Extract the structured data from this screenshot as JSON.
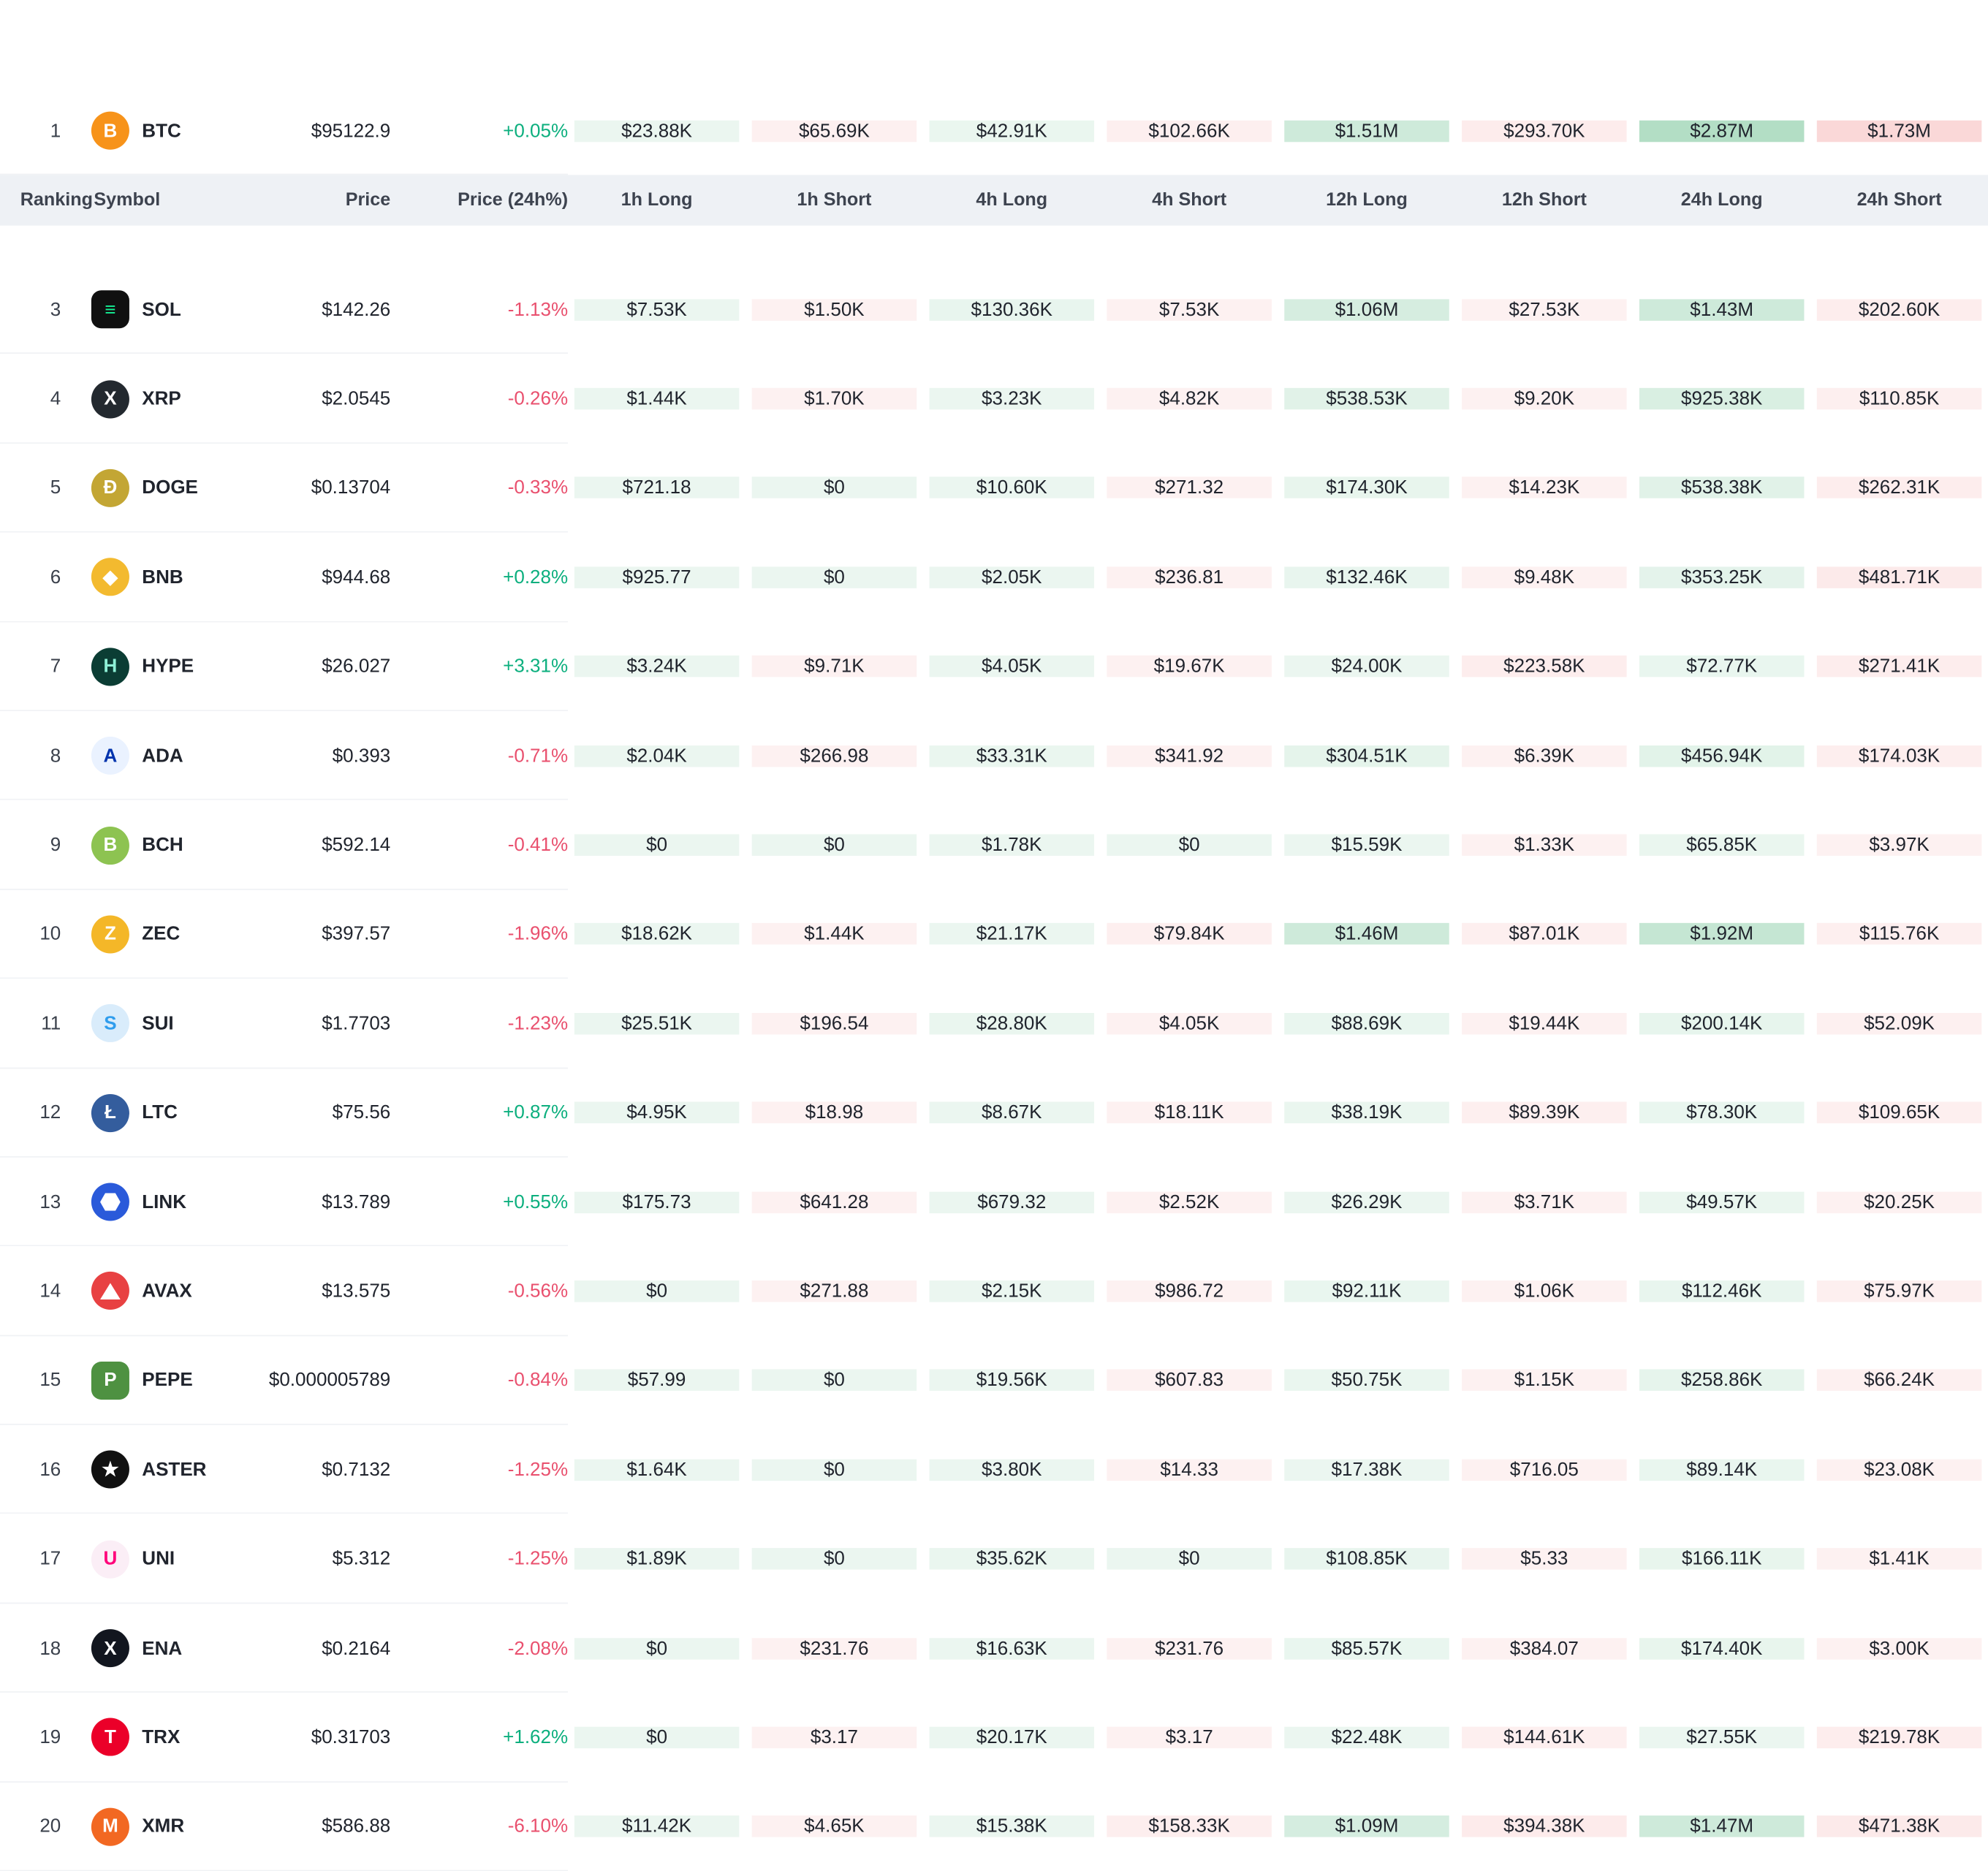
{
  "colors": {
    "positive": "#0caf7e",
    "negative": "#e9506e",
    "text": "#20242d",
    "rank_text": "#3a404b",
    "header_bg": "#eef1f5",
    "header_text": "#3d434f",
    "row_border": "#f0f2f5",
    "long_rgb": "34,160,88",
    "short_rgb": "236,95,95",
    "max_value_for_shade": 2900000
  },
  "header": {
    "columns": [
      "Ranking",
      "Symbol",
      "Price",
      "Price (24h%)",
      "1h Long",
      "1h Short",
      "4h Long",
      "4h Short",
      "12h Long",
      "12h Short",
      "24h Long",
      "24h Short"
    ]
  },
  "top_row": {
    "rank": "1",
    "symbol": "BTC",
    "price": "$95122.9",
    "change": "+0.05%",
    "icon": {
      "bg": "#f7931a",
      "fg": "#ffffff",
      "glyph": "B"
    },
    "cells": [
      "$23.88K",
      "$65.69K",
      "$42.91K",
      "$102.66K",
      "$1.51M",
      "$293.70K",
      "$2.87M",
      "$1.73M"
    ]
  },
  "obscured_row": {
    "cell_colors": [
      "rgba(34,160,88,0.10)",
      "rgba(236,95,95,0.10)",
      "rgba(34,160,88,0.10)",
      "rgba(236,95,95,0.10)",
      "rgba(34,160,88,0.22)",
      "rgba(236,95,95,0.10)",
      "rgba(34,160,88,0.28)",
      "rgba(236,95,95,0.45)"
    ]
  },
  "rows": [
    {
      "rank": "3",
      "symbol": "SOL",
      "price": "$142.26",
      "change": "-1.13%",
      "icon": {
        "bg": "#101010",
        "fg": "#14f195",
        "glyph": "≡",
        "shape": "rounded-square"
      },
      "cells": [
        "$7.53K",
        "$1.50K",
        "$130.36K",
        "$7.53K",
        "$1.06M",
        "$27.53K",
        "$1.43M",
        "$202.60K"
      ]
    },
    {
      "rank": "4",
      "symbol": "XRP",
      "price": "$2.0545",
      "change": "-0.26%",
      "icon": {
        "bg": "#23292f",
        "fg": "#ffffff",
        "glyph": "X"
      },
      "cells": [
        "$1.44K",
        "$1.70K",
        "$3.23K",
        "$4.82K",
        "$538.53K",
        "$9.20K",
        "$925.38K",
        "$110.85K"
      ]
    },
    {
      "rank": "5",
      "symbol": "DOGE",
      "price": "$0.13704",
      "change": "-0.33%",
      "icon": {
        "bg": "#c3a634",
        "fg": "#ffffff",
        "glyph": "Ð"
      },
      "cells": [
        "$721.18",
        "$0",
        "$10.60K",
        "$271.32",
        "$174.30K",
        "$14.23K",
        "$538.38K",
        "$262.31K"
      ]
    },
    {
      "rank": "6",
      "symbol": "BNB",
      "price": "$944.68",
      "change": "+0.28%",
      "icon": {
        "bg": "#f3ba2f",
        "fg": "#ffffff",
        "glyph": "◆"
      },
      "cells": [
        "$925.77",
        "$0",
        "$2.05K",
        "$236.81",
        "$132.46K",
        "$9.48K",
        "$353.25K",
        "$481.71K"
      ]
    },
    {
      "rank": "7",
      "symbol": "HYPE",
      "price": "$26.027",
      "change": "+3.31%",
      "icon": {
        "bg": "#0b3d34",
        "fg": "#8ef0d6",
        "glyph": "H"
      },
      "cells": [
        "$3.24K",
        "$9.71K",
        "$4.05K",
        "$19.67K",
        "$24.00K",
        "$223.58K",
        "$72.77K",
        "$271.41K"
      ]
    },
    {
      "rank": "8",
      "symbol": "ADA",
      "price": "$0.393",
      "change": "-0.71%",
      "icon": {
        "bg": "#eaf2ff",
        "fg": "#0033ad",
        "glyph": "A"
      },
      "cells": [
        "$2.04K",
        "$266.98",
        "$33.31K",
        "$341.92",
        "$304.51K",
        "$6.39K",
        "$456.94K",
        "$174.03K"
      ]
    },
    {
      "rank": "9",
      "symbol": "BCH",
      "price": "$592.14",
      "change": "-0.41%",
      "icon": {
        "bg": "#8dc351",
        "fg": "#ffffff",
        "glyph": "B"
      },
      "cells": [
        "$0",
        "$0",
        "$1.78K",
        "$0",
        "$15.59K",
        "$1.33K",
        "$65.85K",
        "$3.97K"
      ]
    },
    {
      "rank": "10",
      "symbol": "ZEC",
      "price": "$397.57",
      "change": "-1.96%",
      "icon": {
        "bg": "#f4b728",
        "fg": "#ffffff",
        "glyph": "Z"
      },
      "cells": [
        "$18.62K",
        "$1.44K",
        "$21.17K",
        "$79.84K",
        "$1.46M",
        "$87.01K",
        "$1.92M",
        "$115.76K"
      ]
    },
    {
      "rank": "11",
      "symbol": "SUI",
      "price": "$1.7703",
      "change": "-1.23%",
      "icon": {
        "bg": "#d9ecfb",
        "fg": "#2f9ded",
        "glyph": "S"
      },
      "cells": [
        "$25.51K",
        "$196.54",
        "$28.80K",
        "$4.05K",
        "$88.69K",
        "$19.44K",
        "$200.14K",
        "$52.09K"
      ]
    },
    {
      "rank": "12",
      "symbol": "LTC",
      "price": "$75.56",
      "change": "+0.87%",
      "icon": {
        "bg": "#345d9d",
        "fg": "#ffffff",
        "glyph": "Ł"
      },
      "cells": [
        "$4.95K",
        "$18.98",
        "$8.67K",
        "$18.11K",
        "$38.19K",
        "$89.39K",
        "$78.30K",
        "$109.65K"
      ]
    },
    {
      "rank": "13",
      "symbol": "LINK",
      "price": "$13.789",
      "change": "+0.55%",
      "icon": {
        "bg": "#2a5ada",
        "fg": "#ffffff",
        "shape": "hexagon"
      },
      "cells": [
        "$175.73",
        "$641.28",
        "$679.32",
        "$2.52K",
        "$26.29K",
        "$3.71K",
        "$49.57K",
        "$20.25K"
      ]
    },
    {
      "rank": "14",
      "symbol": "AVAX",
      "price": "$13.575",
      "change": "-0.56%",
      "icon": {
        "bg": "#e84142",
        "fg": "#ffffff",
        "shape": "triangle"
      },
      "cells": [
        "$0",
        "$271.88",
        "$2.15K",
        "$986.72",
        "$92.11K",
        "$1.06K",
        "$112.46K",
        "$75.97K"
      ]
    },
    {
      "rank": "15",
      "symbol": "PEPE",
      "price": "$0.000005789",
      "change": "-0.84%",
      "icon": {
        "bg": "#4e9141",
        "fg": "#ffffff",
        "glyph": "P",
        "shape": "rounded-square"
      },
      "cells": [
        "$57.99",
        "$0",
        "$19.56K",
        "$607.83",
        "$50.75K",
        "$1.15K",
        "$258.86K",
        "$66.24K"
      ]
    },
    {
      "rank": "16",
      "symbol": "ASTER",
      "price": "$0.7132",
      "change": "-1.25%",
      "icon": {
        "bg": "#111111",
        "fg": "#ffffff",
        "glyph": "★"
      },
      "cells": [
        "$1.64K",
        "$0",
        "$3.80K",
        "$14.33",
        "$17.38K",
        "$716.05",
        "$89.14K",
        "$23.08K"
      ]
    },
    {
      "rank": "17",
      "symbol": "UNI",
      "price": "$5.312",
      "change": "-1.25%",
      "icon": {
        "bg": "#fbeef6",
        "fg": "#ff007a",
        "glyph": "U"
      },
      "cells": [
        "$1.89K",
        "$0",
        "$35.62K",
        "$0",
        "$108.85K",
        "$5.33",
        "$166.11K",
        "$1.41K"
      ]
    },
    {
      "rank": "18",
      "symbol": "ENA",
      "price": "$0.2164",
      "change": "-2.08%",
      "icon": {
        "bg": "#12161f",
        "fg": "#ffffff",
        "glyph": "X"
      },
      "cells": [
        "$0",
        "$231.76",
        "$16.63K",
        "$231.76",
        "$85.57K",
        "$384.07",
        "$174.40K",
        "$3.00K"
      ]
    },
    {
      "rank": "19",
      "symbol": "TRX",
      "price": "$0.31703",
      "change": "+1.62%",
      "icon": {
        "bg": "#eb0029",
        "fg": "#ffffff",
        "glyph": "T"
      },
      "cells": [
        "$0",
        "$3.17",
        "$20.17K",
        "$3.17",
        "$22.48K",
        "$144.61K",
        "$27.55K",
        "$219.78K"
      ]
    },
    {
      "rank": "20",
      "symbol": "XMR",
      "price": "$586.88",
      "change": "-6.10%",
      "icon": {
        "bg": "#f26822",
        "fg": "#ffffff",
        "glyph": "M"
      },
      "cells": [
        "$11.42K",
        "$4.65K",
        "$15.38K",
        "$158.33K",
        "$1.09M",
        "$394.38K",
        "$1.47M",
        "$471.38K"
      ]
    }
  ]
}
